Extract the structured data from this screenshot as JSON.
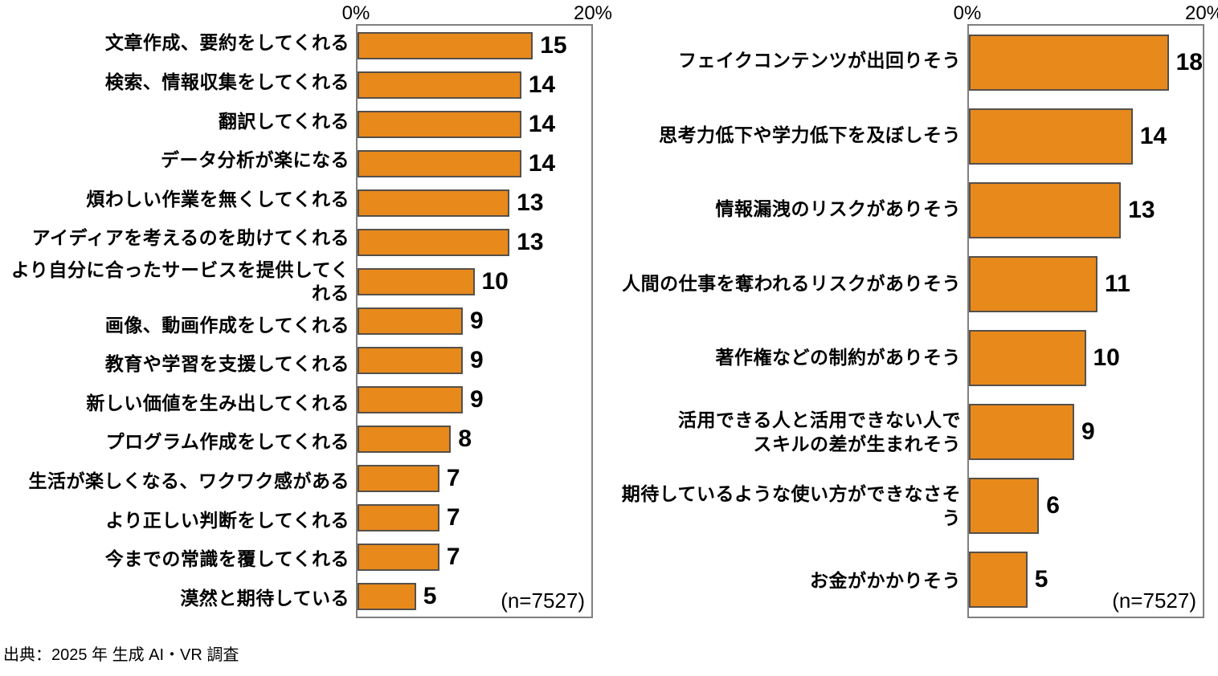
{
  "colors": {
    "bar_fill": "#E8891B",
    "bar_border": "#55504b",
    "plot_border": "#7f7f7f",
    "text": "#000000"
  },
  "footer": {
    "source_label": "出典：2025 年 生成 AI・VR 調査"
  },
  "chart_data": [
    {
      "id": "expectations",
      "type": "bar",
      "orientation": "horizontal",
      "title": "",
      "xlabel": "",
      "ylabel": "",
      "xlim": [
        0,
        20
      ],
      "ticks": [
        "0%",
        "20%"
      ],
      "grid": false,
      "legend": "none",
      "n_label": "(n=7527)",
      "bar_color": "#E8891B",
      "categories": [
        "文章作成、要約をしてくれる",
        "検索、情報収集をしてくれる",
        "翻訳してくれる",
        "データ分析が楽になる",
        "煩わしい作業を無くしてくれる",
        "アイディアを考えるのを助けてくれる",
        "より自分に合ったサービスを提供してくれる",
        "画像、動画作成をしてくれる",
        "教育や学習を支援してくれる",
        "新しい価値を生み出してくれる",
        "プログラム作成をしてくれる",
        "生活が楽しくなる、ワクワク感がある",
        "より正しい判断をしてくれる",
        "今までの常識を覆してくれる",
        "漠然と期待している"
      ],
      "values": [
        15,
        14,
        14,
        14,
        13,
        13,
        10,
        9,
        9,
        9,
        8,
        7,
        7,
        7,
        5
      ]
    },
    {
      "id": "concerns",
      "type": "bar",
      "orientation": "horizontal",
      "title": "",
      "xlabel": "",
      "ylabel": "",
      "xlim": [
        0,
        20
      ],
      "ticks": [
        "0%",
        "20%"
      ],
      "grid": false,
      "legend": "none",
      "n_label": "(n=7527)",
      "bar_color": "#E8891B",
      "categories": [
        "フェイクコンテンツが出回りそう",
        "思考力低下や学力低下を及ぼしそう",
        "情報漏洩のリスクがありそう",
        "人間の仕事を奪われるリスクがありそう",
        "著作権などの制約がありそう",
        "活用できる人と活用できない人で\nスキルの差が生まれそう",
        "期待しているような使い方ができなさそう",
        "お金がかかりそう"
      ],
      "values": [
        18,
        14,
        13,
        11,
        10,
        9,
        6,
        5
      ]
    }
  ]
}
